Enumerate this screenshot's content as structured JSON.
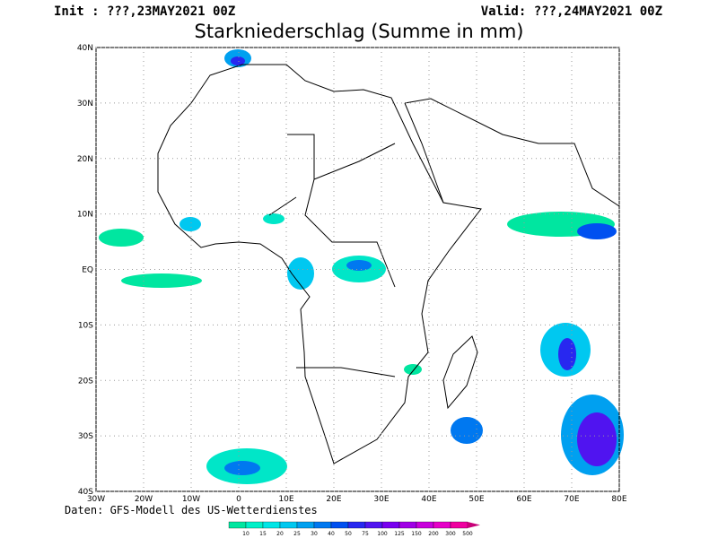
{
  "header": {
    "init": "Init : ???,23MAY2021 00Z",
    "valid": "Valid: ???,24MAY2021 00Z",
    "title": "Starkniederschlag (Summe in mm)"
  },
  "map": {
    "lat_labels": [
      "40N",
      "30N",
      "20N",
      "10N",
      "EQ",
      "10S",
      "20S",
      "30S",
      "40S"
    ],
    "lon_labels": [
      "30W",
      "20W",
      "10W",
      "0",
      "10E",
      "20E",
      "30E",
      "40E",
      "50E",
      "60E",
      "70E",
      "80E"
    ]
  },
  "footer": "Daten: GFS-Modell des US-Wetterdienstes",
  "colorbar": {
    "labels": [
      "10",
      "15",
      "20",
      "25",
      "30",
      "40",
      "50",
      "75",
      "100",
      "125",
      "150",
      "200",
      "300",
      "500"
    ],
    "colors": [
      "#00e6a0",
      "#00f0c8",
      "#00e6e6",
      "#00c8f0",
      "#00a0f0",
      "#0078f0",
      "#0050f0",
      "#2828f0",
      "#5014f0",
      "#7800f0",
      "#a000e6",
      "#c800dc",
      "#e600c8",
      "#f000a0",
      "#c80078"
    ]
  }
}
